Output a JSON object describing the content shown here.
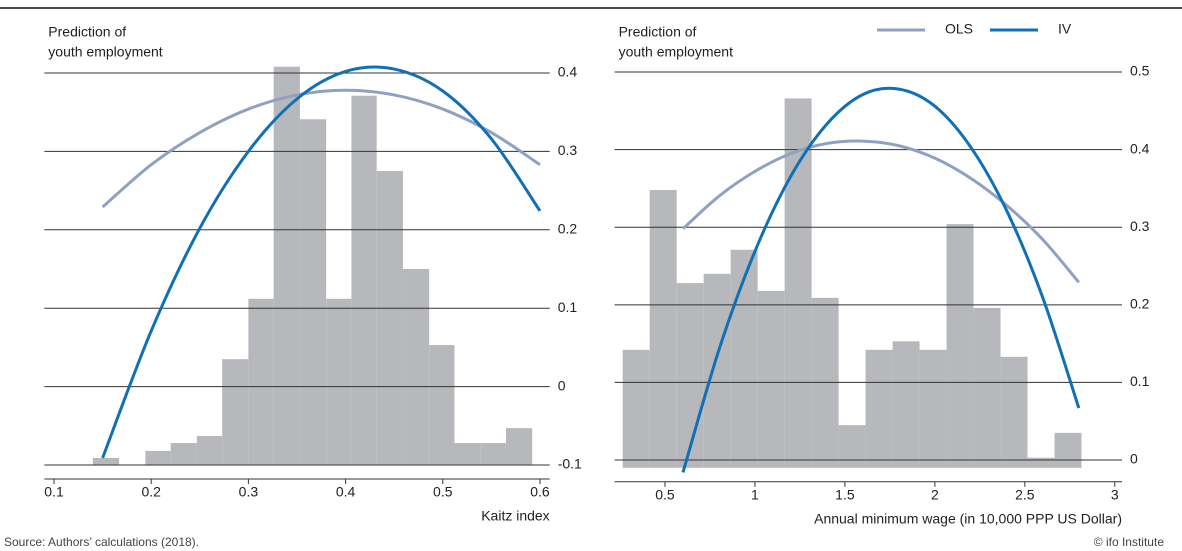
{
  "chart_data": [
    {
      "type": "histogram",
      "ylabel": [
        "Prediction of",
        "youth employment"
      ],
      "xlabel": "Kaitz index",
      "bins": [
        0.14,
        0.167,
        0.194,
        0.22,
        0.247,
        0.273,
        0.3,
        0.326,
        0.353,
        0.38,
        0.406,
        0.432,
        0.459,
        0.486,
        0.512,
        0.539,
        0.565,
        0.592
      ],
      "values": [
        -0.091,
        -0.1,
        -0.082,
        -0.072,
        -0.063,
        0.035,
        0.112,
        0.408,
        0.341,
        0.112,
        0.371,
        0.275,
        0.15,
        0.053,
        -0.072,
        -0.072,
        -0.053
      ],
      "bar_color": "#b6b8bb",
      "series": [
        {
          "color": "#8fa1c3",
          "x": [
            0.15,
            0.2,
            0.25,
            0.3,
            0.35,
            0.4,
            0.45,
            0.5,
            0.55,
            0.6
          ],
          "values": [
            0.229,
            0.283,
            0.324,
            0.354,
            0.372,
            0.378,
            0.372,
            0.354,
            0.324,
            0.283
          ]
        },
        {
          "color": "#1170b5",
          "x": [
            0.15,
            0.2,
            0.25,
            0.3,
            0.35,
            0.4,
            0.45,
            0.5,
            0.55,
            0.6
          ],
          "values": [
            -0.091,
            0.071,
            0.202,
            0.3,
            0.367,
            0.402,
            0.405,
            0.377,
            0.316,
            0.224
          ]
        }
      ],
      "xlim": [
        0.09,
        0.61
      ],
      "xticks": [
        0.1,
        0.2,
        0.3,
        0.4,
        0.5,
        0.6
      ],
      "ylim": [
        -0.1,
        0.42
      ],
      "yticks": [
        -0.1,
        0,
        0.1,
        0.2,
        0.3,
        0.4
      ],
      "grid": true
    },
    {
      "type": "histogram",
      "ylabel": [
        "Prediction of",
        "youth employment"
      ],
      "xlabel": "Annual minimum wage (in 10,000 PPP US Dollar)",
      "bins": [
        0.265,
        0.415,
        0.565,
        0.715,
        0.865,
        1.015,
        1.165,
        1.315,
        1.465,
        1.615,
        1.765,
        1.915,
        2.065,
        2.215,
        2.365,
        2.515,
        2.665,
        2.815
      ],
      "values": [
        0.142,
        0.348,
        0.228,
        0.24,
        0.271,
        0.218,
        0.466,
        0.209,
        0.045,
        0.142,
        0.153,
        0.142,
        0.304,
        0.196,
        0.133,
        0.003,
        0.035
      ],
      "bar_color": "#b6b8bb",
      "series": [
        {
          "name": "OLS",
          "color": "#8fa1c3",
          "x": [
            0.6,
            0.8,
            1.0,
            1.2,
            1.4,
            1.6,
            1.8,
            2.0,
            2.2,
            2.4,
            2.6,
            2.8
          ],
          "values": [
            0.298,
            0.34,
            0.372,
            0.395,
            0.408,
            0.411,
            0.405,
            0.389,
            0.363,
            0.328,
            0.284,
            0.229
          ]
        },
        {
          "name": "IV",
          "color": "#1170b5",
          "x": [
            0.6,
            0.8,
            1.0,
            1.2,
            1.4,
            1.6,
            1.8,
            2.0,
            2.2,
            2.4,
            2.6,
            2.8
          ],
          "values": [
            -0.016,
            0.142,
            0.269,
            0.366,
            0.433,
            0.471,
            0.478,
            0.456,
            0.403,
            0.321,
            0.209,
            0.067
          ]
        }
      ],
      "xlim": [
        0.22,
        3.04
      ],
      "xticks": [
        0.5,
        1,
        1.5,
        2,
        2.5,
        3
      ],
      "ylim": [
        -0.01,
        0.52
      ],
      "yticks": [
        0,
        0.1,
        0.2,
        0.3,
        0.4,
        0.5
      ],
      "grid": true,
      "legend": "upper right"
    }
  ],
  "source": "Source: Authors’ calculations (2018).",
  "credit": "© ifo Institute"
}
